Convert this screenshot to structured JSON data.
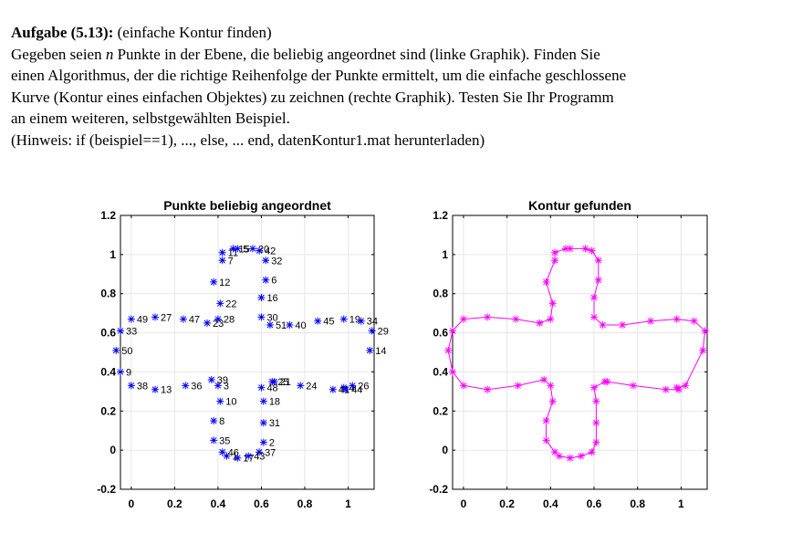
{
  "task": {
    "heading": "Aufgabe (5.13):",
    "subtitle": "(einfache Kontur finden)",
    "line1_pre": "Gegeben seien ",
    "n_var": "n",
    "line1_post": " Punkte in der Ebene, die beliebig angeordnet sind (linke Graphik). Finden Sie",
    "line2": "einen Algorithmus, der die richtige Reihenfolge der Punkte ermittelt, um die einfache geschlossene",
    "line3": "Kurve (Kontur eines einfachen Objektes) zu zeichnen (rechte Graphik). Testen Sie Ihr Programm",
    "line4": "an einem weiteren, selbstgewählten Beispiel.",
    "line5": "(Hinweis: if (beispiel==1), ..., else, ... end, datenKontur1.mat herunterladen)"
  },
  "colors": {
    "left_markers": "#0000ff",
    "right_series": "#ff00ff",
    "grid": "#e6e6e6",
    "axes": "#000000"
  },
  "chart_data": [
    {
      "type": "scatter",
      "title": "Punkte beliebig angeordnet",
      "xlim": [
        -0.05,
        1.12
      ],
      "ylim": [
        -0.2,
        1.2
      ],
      "xticks": [
        0,
        0.2,
        0.4,
        0.6,
        0.8,
        1
      ],
      "xtick_labels": [
        "0",
        "0.2",
        "0.4",
        "0.6",
        "0.8",
        "1"
      ],
      "yticks": [
        -0.2,
        0,
        0.2,
        0.4,
        0.6,
        0.8,
        1,
        1.2
      ],
      "ytick_labels": [
        "-0.2",
        "0",
        "0.2",
        "0.4",
        "0.6",
        "0.8",
        "1",
        "1.2"
      ],
      "grid": true,
      "marker": "asterisk",
      "points": [
        {
          "label": "1",
          "x": 0.44,
          "y": -0.03
        },
        {
          "label": "2",
          "x": 0.61,
          "y": 0.04
        },
        {
          "label": "3",
          "x": 0.4,
          "y": 0.33
        },
        {
          "label": "4",
          "x": 0.98,
          "y": 0.32
        },
        {
          "label": "5",
          "x": 0.49,
          "y": 1.03
        },
        {
          "label": "6",
          "x": 0.62,
          "y": 0.87
        },
        {
          "label": "7",
          "x": 0.42,
          "y": 0.97
        },
        {
          "label": "8",
          "x": 0.38,
          "y": 0.15
        },
        {
          "label": "9",
          "x": -0.05,
          "y": 0.4
        },
        {
          "label": "10",
          "x": 0.41,
          "y": 0.25
        },
        {
          "label": "11",
          "x": 0.42,
          "y": 1.01
        },
        {
          "label": "12",
          "x": 0.38,
          "y": 0.86
        },
        {
          "label": "13",
          "x": 0.11,
          "y": 0.31
        },
        {
          "label": "14",
          "x": 1.1,
          "y": 0.51
        },
        {
          "label": "15",
          "x": 0.47,
          "y": 1.03
        },
        {
          "label": "16",
          "x": 0.6,
          "y": 0.78
        },
        {
          "label": "17",
          "x": 0.49,
          "y": -0.04
        },
        {
          "label": "18",
          "x": 0.61,
          "y": 0.25
        },
        {
          "label": "19",
          "x": 0.98,
          "y": 0.67
        },
        {
          "label": "20",
          "x": 0.56,
          "y": 1.03
        },
        {
          "label": "21",
          "x": 0.66,
          "y": 0.35
        },
        {
          "label": "22",
          "x": 0.41,
          "y": 0.75
        },
        {
          "label": "23",
          "x": 0.35,
          "y": 0.65
        },
        {
          "label": "24",
          "x": 0.78,
          "y": 0.33
        },
        {
          "label": "25",
          "x": 0.65,
          "y": 0.35
        },
        {
          "label": "26",
          "x": 1.02,
          "y": 0.33
        },
        {
          "label": "27",
          "x": 0.11,
          "y": 0.68
        },
        {
          "label": "28",
          "x": 0.4,
          "y": 0.67
        },
        {
          "label": "29",
          "x": 1.11,
          "y": 0.61
        },
        {
          "label": "30",
          "x": 0.6,
          "y": 0.68
        },
        {
          "label": "31",
          "x": 0.61,
          "y": 0.14
        },
        {
          "label": "32",
          "x": 0.62,
          "y": 0.97
        },
        {
          "label": "33",
          "x": -0.05,
          "y": 0.61
        },
        {
          "label": "34",
          "x": 1.06,
          "y": 0.66
        },
        {
          "label": "35",
          "x": 0.38,
          "y": 0.05
        },
        {
          "label": "36",
          "x": 0.25,
          "y": 0.33
        },
        {
          "label": "37",
          "x": 0.59,
          "y": -0.01
        },
        {
          "label": "38",
          "x": 0.0,
          "y": 0.33
        },
        {
          "label": "39",
          "x": 0.37,
          "y": 0.36
        },
        {
          "label": "40",
          "x": 0.73,
          "y": 0.64
        },
        {
          "label": "41",
          "x": 0.93,
          "y": 0.31
        },
        {
          "label": "42",
          "x": 0.59,
          "y": 1.02
        },
        {
          "label": "43",
          "x": 0.54,
          "y": -0.03
        },
        {
          "label": "44",
          "x": 0.99,
          "y": 0.31
        },
        {
          "label": "45",
          "x": 0.86,
          "y": 0.66
        },
        {
          "label": "46",
          "x": 0.42,
          "y": -0.01
        },
        {
          "label": "47",
          "x": 0.24,
          "y": 0.67
        },
        {
          "label": "48",
          "x": 0.6,
          "y": 0.32
        },
        {
          "label": "49",
          "x": 0.0,
          "y": 0.67
        },
        {
          "label": "50",
          "x": -0.07,
          "y": 0.51
        },
        {
          "label": "51",
          "x": 0.64,
          "y": 0.64
        }
      ]
    },
    {
      "type": "line",
      "title": "Kontur gefunden",
      "xlim": [
        -0.05,
        1.12
      ],
      "ylim": [
        -0.2,
        1.2
      ],
      "xticks": [
        0,
        0.2,
        0.4,
        0.6,
        0.8,
        1
      ],
      "xtick_labels": [
        "0",
        "0.2",
        "0.4",
        "0.6",
        "0.8",
        "1"
      ],
      "yticks": [
        -0.2,
        0,
        0.2,
        0.4,
        0.6,
        0.8,
        1,
        1.2
      ],
      "ytick_labels": [
        "-0.2",
        "0",
        "0.2",
        "0.4",
        "0.6",
        "0.8",
        "1",
        "1.2"
      ],
      "grid": true,
      "marker": "asterisk",
      "closed": true,
      "order": [
        "33",
        "49",
        "27",
        "47",
        "23",
        "28",
        "22",
        "12",
        "7",
        "11",
        "15",
        "5",
        "20",
        "42",
        "32",
        "6",
        "16",
        "30",
        "51",
        "40",
        "45",
        "19",
        "34",
        "29",
        "14",
        "26",
        "4",
        "44",
        "41",
        "24",
        "21",
        "25",
        "48",
        "18",
        "31",
        "2",
        "37",
        "43",
        "17",
        "1",
        "46",
        "35",
        "8",
        "10",
        "3",
        "39",
        "36",
        "13",
        "38",
        "9",
        "50"
      ]
    }
  ]
}
